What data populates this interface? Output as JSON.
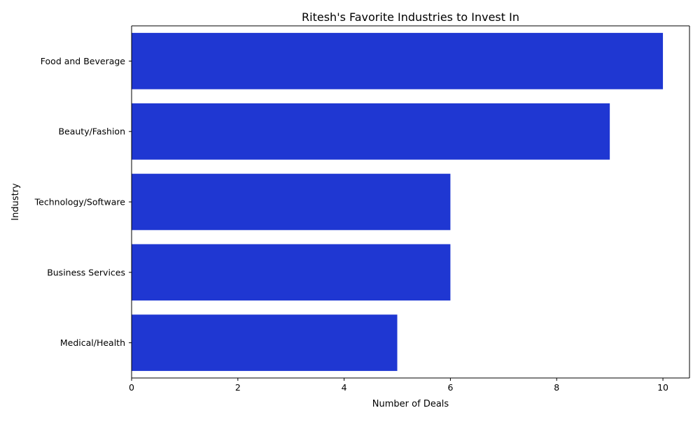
{
  "chart_data": {
    "type": "bar",
    "orientation": "horizontal",
    "title": "Ritesh's Favorite Industries to Invest In",
    "xlabel": "Number of Deals",
    "ylabel": "Industry",
    "categories": [
      "Food and Beverage",
      "Beauty/Fashion",
      "Technology/Software",
      "Business Services",
      "Medical/Health"
    ],
    "values": [
      10,
      9,
      6,
      6,
      5
    ],
    "xlim": [
      0,
      10.5
    ],
    "xticks": [
      0,
      2,
      4,
      6,
      8,
      10
    ],
    "xtick_labels": [
      "0",
      "2",
      "4",
      "6",
      "8",
      "10"
    ],
    "grid": false,
    "bar_color": "#1f37d2"
  }
}
